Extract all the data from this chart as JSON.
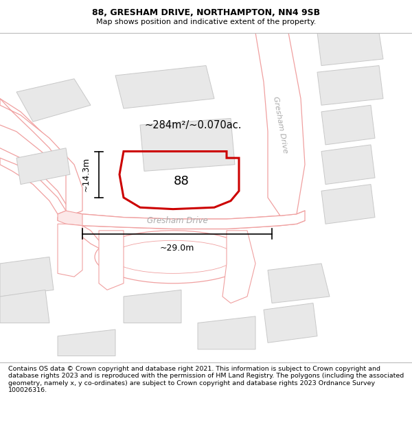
{
  "title": "88, GRESHAM DRIVE, NORTHAMPTON, NN4 9SB",
  "subtitle": "Map shows position and indicative extent of the property.",
  "footer": "Contains OS data © Crown copyright and database right 2021. This information is subject to Crown copyright and database rights 2023 and is reproduced with the permission of HM Land Registry. The polygons (including the associated geometry, namely x, y co-ordinates) are subject to Crown copyright and database rights 2023 Ordnance Survey 100026316.",
  "map_bg": "#ffffff",
  "road_line_color": "#f0a0a0",
  "building_fc": "#e8e8e8",
  "building_ec": "#c8c8c8",
  "highlight_color": "#cc0000",
  "area_text": "~284m²/~0.070ac.",
  "number_text": "88",
  "dim_width": "~29.0m",
  "dim_height": "~14.3m",
  "road_label": "Gresham Drive",
  "road_label_diagonal": "Gresham Drive",
  "title_fontsize": 9,
  "subtitle_fontsize": 8,
  "footer_fontsize": 6.8
}
